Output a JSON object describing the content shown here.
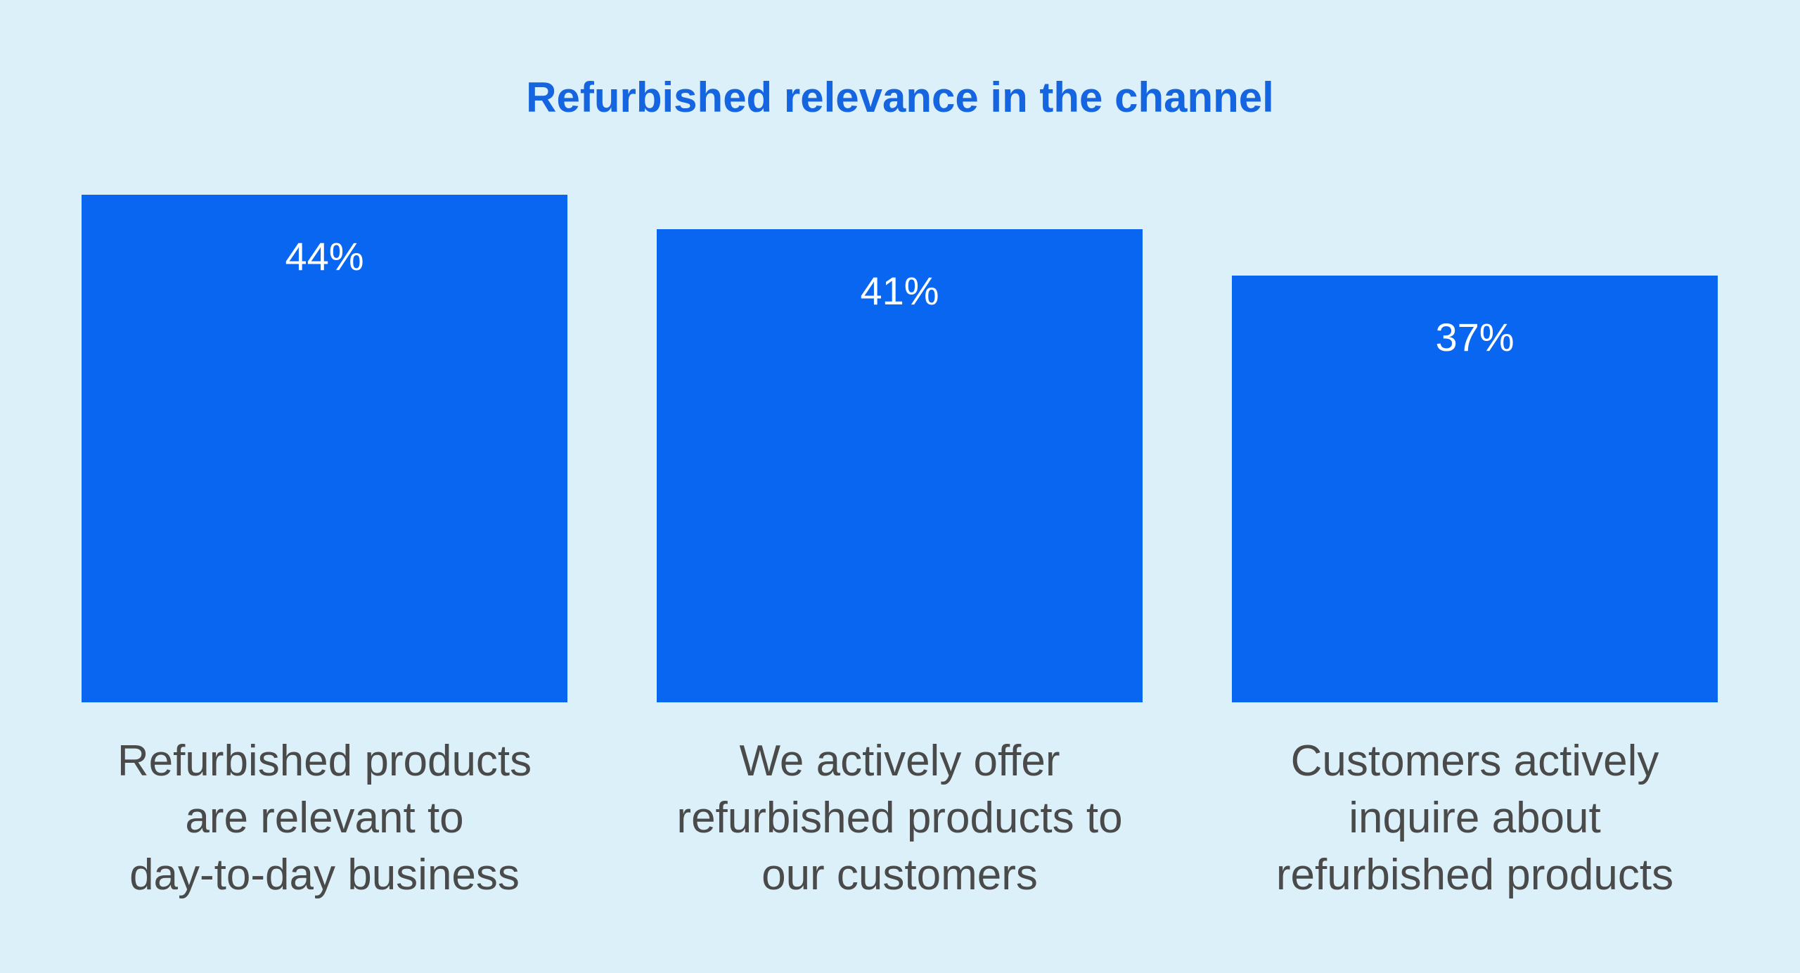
{
  "chart_data": {
    "type": "bar",
    "title": "Refurbished relevance in the channel",
    "categories": [
      "Refurbished products\nare relevant to\nday-to-day business",
      "We actively offer\nrefurbished products to\nour customers",
      "Customers actively\ninquire about\nrefurbished products"
    ],
    "values": [
      44,
      41,
      37
    ],
    "value_labels": [
      "44%",
      "41%",
      "37%"
    ],
    "color": "#0866f0"
  }
}
